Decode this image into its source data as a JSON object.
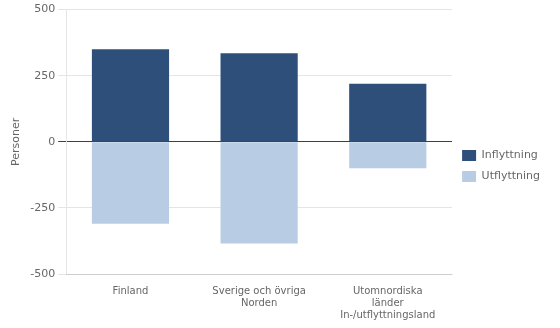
{
  "chart_data": {
    "type": "bar",
    "categories": [
      "Finland",
      "Sverige och övriga\nNorden",
      "Utomnordiska\nländer\nIn-/utflyttningsland"
    ],
    "series": [
      {
        "name": "Inflyttning",
        "color": "#2E4F7A",
        "values": [
          350,
          335,
          220
        ]
      },
      {
        "name": "Utflyttning",
        "color": "#B8CCE4",
        "values": [
          -310,
          -385,
          -100
        ]
      }
    ],
    "ylabel": "Personer",
    "ylim": [
      -500,
      500
    ],
    "yticks": [
      -500,
      -250,
      0,
      250,
      500
    ],
    "grid": true,
    "legend": "right"
  }
}
